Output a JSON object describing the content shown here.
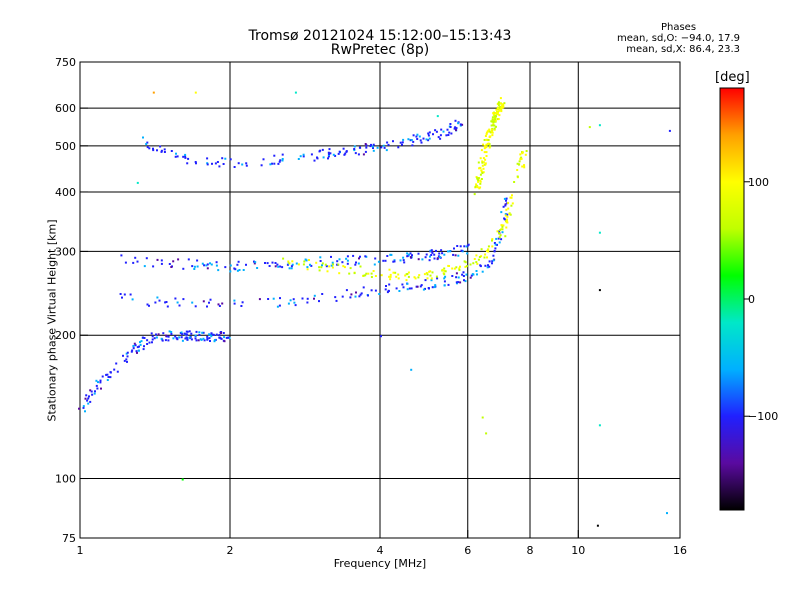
{
  "title_line1": "Tromsø 20121024 15:12:00–15:13:43",
  "title_line2": "RwPretec (8p)",
  "stats": {
    "header": "Phases",
    "line1": "mean, sd,O: −94.0, 17.9",
    "line2": "mean, sd,X:  86.4, 23.3"
  },
  "colorbar": {
    "unit_label": "[deg]",
    "ticks": [
      "100",
      "0",
      "−100"
    ],
    "tick_values": [
      100,
      0,
      -100
    ],
    "range": [
      -180,
      180
    ],
    "colors": [
      "#000000",
      "#5a0aa0",
      "#2020ff",
      "#00b0ff",
      "#00e8c8",
      "#00ff00",
      "#c0ff00",
      "#ffff00",
      "#ffa000",
      "#ff0000"
    ]
  },
  "chart_data": {
    "type": "scatter",
    "title": "Tromsø 20121024 15:12:00–15:13:43",
    "subtitle": "RwPretec (8p)",
    "xlabel": "Frequency [MHz]",
    "ylabel": "Stationary phase Virtual Height [km]",
    "xscale": "log",
    "yscale": "log",
    "xlim": [
      1,
      16
    ],
    "ylim": [
      75,
      750
    ],
    "x_ticks": [
      1,
      2,
      4,
      6,
      8,
      10,
      16
    ],
    "x_tick_labels": [
      "1",
      "2",
      "4",
      "6",
      "8",
      "10",
      "16"
    ],
    "y_ticks": [
      75,
      100,
      200,
      300,
      400,
      500,
      600,
      750
    ],
    "y_tick_labels": [
      "75",
      "100",
      "200",
      "300",
      "400",
      "500",
      "600",
      "750"
    ],
    "grid": true,
    "color_encoding": "phase (deg)",
    "series": [
      {
        "mode": "O",
        "phase_deg": -94,
        "trace_E_F1": {
          "x": [
            1.0,
            1.1,
            1.2,
            1.3,
            1.4,
            1.6,
            1.8,
            2.0
          ],
          "y": [
            140,
            160,
            175,
            190,
            200,
            200,
            200,
            200
          ]
        },
        "trace_F_lower": {
          "x": [
            1.2,
            1.5,
            2.0,
            2.5,
            3.0,
            3.5,
            4.0,
            4.5,
            5.0,
            5.5,
            6.0,
            6.5,
            6.8,
            7.0,
            7.2
          ],
          "y": [
            240,
            235,
            233,
            236,
            240,
            245,
            250,
            253,
            257,
            262,
            268,
            280,
            300,
            340,
            400
          ]
        },
        "trace_F_upper": {
          "x": [
            1.2,
            1.5,
            2.0,
            2.5,
            3.0,
            3.5,
            4.0,
            4.5,
            5.0,
            5.5,
            6.0
          ],
          "y": [
            290,
            285,
            280,
            283,
            286,
            288,
            290,
            292,
            295,
            300,
            305
          ]
        },
        "trace_multi": {
          "x": [
            1.3,
            1.6,
            2.0,
            2.5,
            3.0,
            3.5,
            4.0,
            4.5,
            5.0,
            5.5,
            5.8
          ],
          "y": [
            520,
            470,
            460,
            470,
            480,
            490,
            500,
            510,
            525,
            540,
            560
          ]
        }
      },
      {
        "mode": "X",
        "phase_deg": 86,
        "trace_F": {
          "x": [
            2.5,
            3.0,
            3.5,
            4.0,
            4.5,
            5.0,
            5.5,
            6.0,
            6.5,
            7.0,
            7.3,
            7.6,
            7.8
          ],
          "y": [
            290,
            280,
            275,
            270,
            268,
            270,
            275,
            285,
            300,
            330,
            380,
            450,
            500
          ]
        },
        "trace_cusp": {
          "x": [
            6.2,
            6.5,
            6.8,
            7.0
          ],
          "y": [
            400,
            500,
            580,
            620
          ]
        }
      }
    ],
    "scattered_points": {
      "x": [
        1.4,
        1.7,
        1.3,
        2.7,
        4.0,
        5.2,
        6.4,
        6.5,
        10.5,
        11.0,
        11.0,
        11.0,
        11.0,
        10.9,
        15.2,
        15.0,
        1.6,
        4.6
      ],
      "y": [
        650,
        650,
        420,
        650,
        200,
        580,
        135,
        125,
        550,
        555,
        330,
        250,
        130,
        80,
        540,
        85,
        100,
        170
      ]
    }
  }
}
